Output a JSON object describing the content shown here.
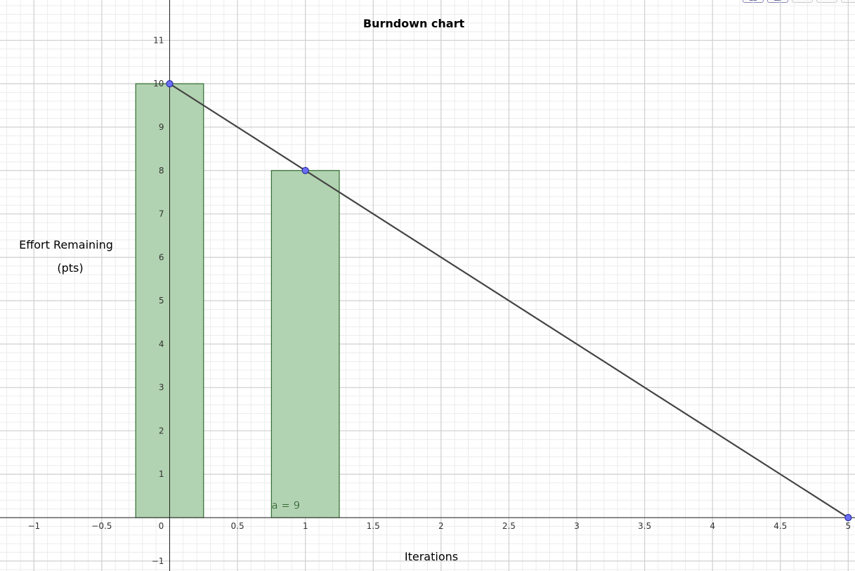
{
  "colors": {
    "background": "#ffffff",
    "grid_major": "#d0d0d0",
    "grid_minor": "#ececec",
    "axis": "#222222",
    "bar_fill": "#b2d3b1",
    "bar_stroke": "#2e6b2f",
    "line": "#444444",
    "point_fill": "#6a6ef2",
    "point_stroke": "#1f2299",
    "label_text": "#2e6b2f"
  },
  "toolbar": {
    "buttons": [
      "graphing-tool-icon",
      "grid-tool-icon",
      "empty-tool",
      "empty-tool",
      "empty-tool"
    ]
  },
  "chart_data": {
    "type": "bar",
    "title": "Burndown chart",
    "xlabel": "Iterations",
    "ylabel_lines": [
      "Effort Remaining",
      "(pts)"
    ],
    "xlim": [
      -1.25,
      5.05
    ],
    "ylim": [
      -1.23,
      11.93
    ],
    "grid": true,
    "x_ticks": [
      "-1",
      "-0.5",
      "0",
      "0.5",
      "1",
      "1.5",
      "2",
      "2.5",
      "3",
      "3.5",
      "4",
      "4.5",
      "5"
    ],
    "y_ticks": [
      "-1",
      "1",
      "2",
      "3",
      "4",
      "5",
      "6",
      "7",
      "8",
      "9",
      "10",
      "11"
    ],
    "bars": [
      {
        "x_center": 0,
        "width": 0.5,
        "value": 10
      },
      {
        "x_center": 1,
        "width": 0.5,
        "value": 8
      }
    ],
    "series": [
      {
        "type": "line",
        "points": [
          [
            0,
            10
          ],
          [
            1,
            8
          ],
          [
            5,
            0
          ]
        ]
      }
    ],
    "annotations": [
      {
        "text": "a = 9",
        "x": 0.75,
        "y": 0.2
      }
    ]
  }
}
